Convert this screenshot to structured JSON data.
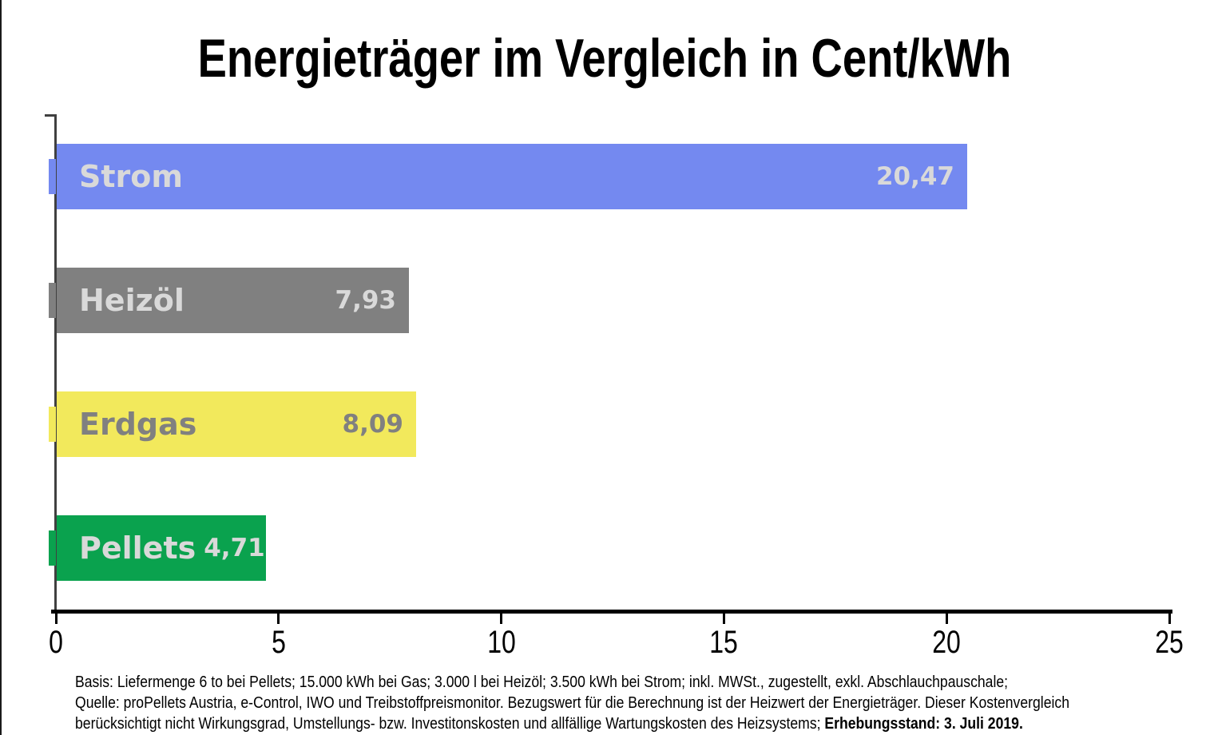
{
  "title": "Energieträger im Vergleich in Cent/kWh",
  "chart_data": {
    "type": "bar",
    "orientation": "horizontal",
    "title": "Energieträger im Vergleich in Cent/kWh",
    "xlabel": "",
    "ylabel": "",
    "xlim": [
      0,
      25
    ],
    "x_ticks": [
      "0",
      "5",
      "10",
      "15",
      "20",
      "25"
    ],
    "grid": false,
    "legend": false,
    "categories": [
      "Strom",
      "Heizöl",
      "Erdgas",
      "Pellets"
    ],
    "values": [
      20.47,
      7.93,
      8.09,
      4.71
    ],
    "value_labels": [
      "20,47",
      "7,93",
      "8,09",
      "4,71"
    ],
    "bar_colors": [
      "#7489F0",
      "#808080",
      "#F2E95C",
      "#0AA24E"
    ],
    "label_colors": [
      "#D9D9D9",
      "#D9D9D9",
      "#808080",
      "#D9D9D9"
    ],
    "axis_color": "#404040",
    "baseline_color": "#000000"
  },
  "footnote": {
    "line1": "Basis: Liefermenge 6 to bei Pellets; 15.000 kWh bei Gas; 3.000 l bei Heizöl; 3.500 kWh bei Strom; inkl. MWSt., zugestellt, exkl. Abschlauchpauschale;",
    "line2": "Quelle: proPellets Austria, e-Control, IWO und Treibstoffpreismonitor. Bezugswert für die Berechnung ist der Heizwert der Energieträger. Dieser Kostenvergleich",
    "line3": "berücksichtigt nicht Wirkungsgrad, Umstellungs- bzw. Investitonskosten und allfällige Wartungskosten des Heizsystems; ",
    "line3_bold": "Erhebungsstand: 3. Juli 2019."
  }
}
